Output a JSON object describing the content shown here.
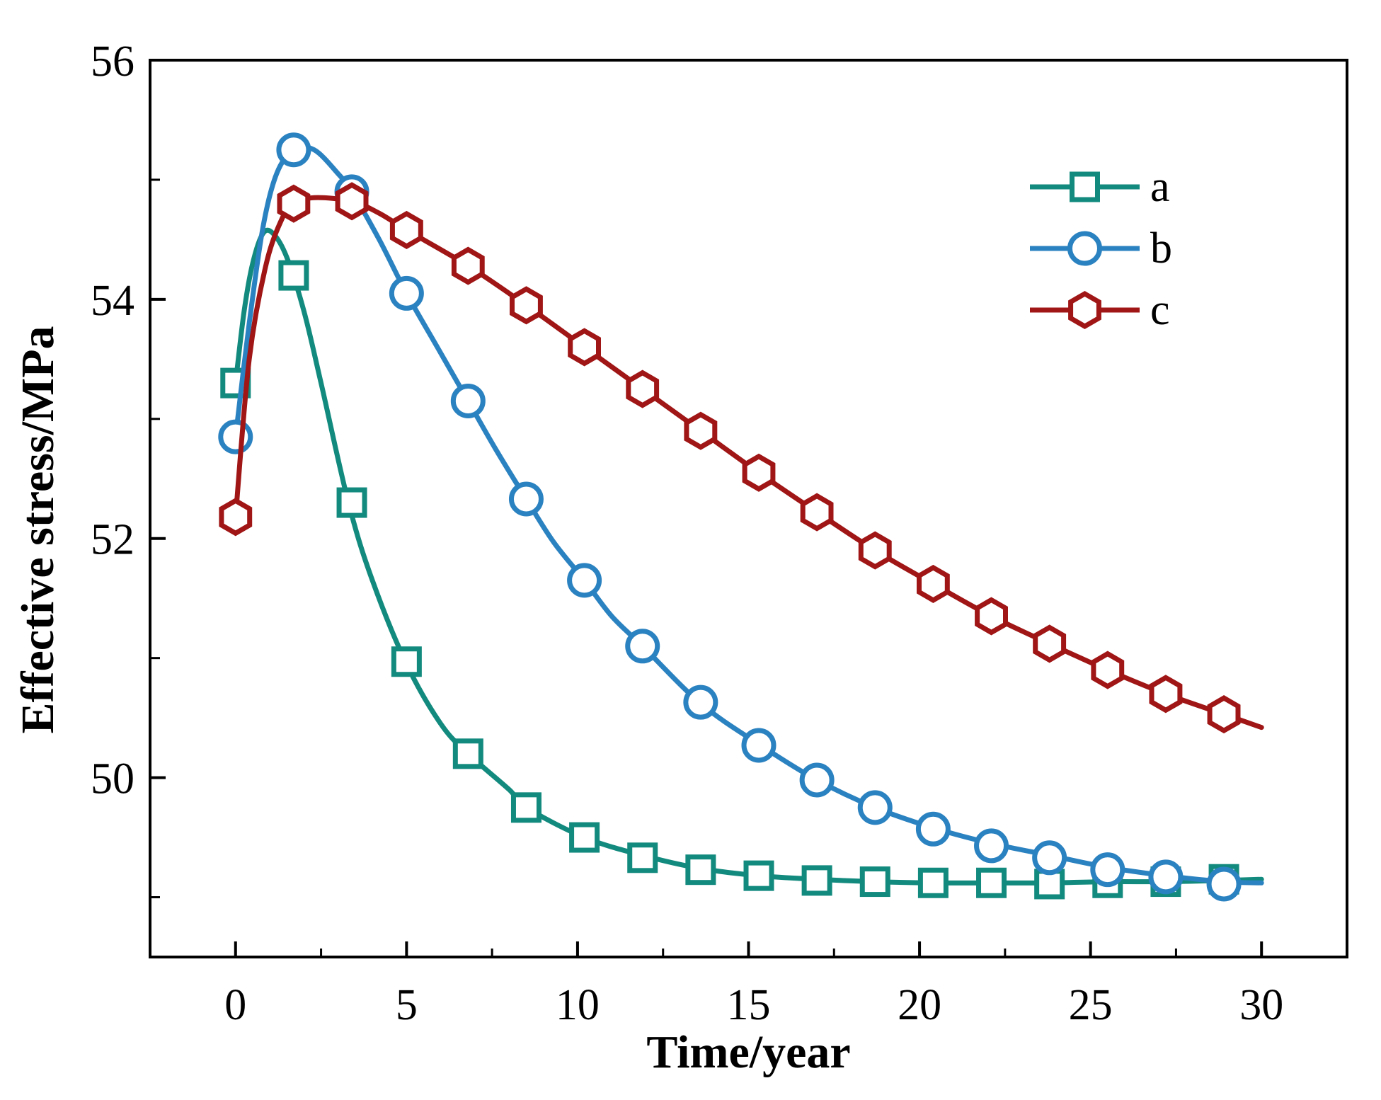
{
  "chart_data": {
    "type": "line",
    "title": "",
    "xlabel": "Time/year",
    "ylabel": "Effective stress/MPa",
    "xlim": [
      -2.5,
      32.5
    ],
    "ylim": [
      48.5,
      56
    ],
    "x_ticks": [
      0,
      5,
      10,
      15,
      20,
      25,
      30
    ],
    "y_ticks_labeled": [
      50,
      52,
      54,
      56
    ],
    "y_ticks_minor": [
      49,
      51,
      53,
      55
    ],
    "legend_position": "top-right",
    "series": [
      {
        "name": "a",
        "color": "#138a7e",
        "marker": "square",
        "curve": [
          [
            0,
            53.3
          ],
          [
            0.25,
            53.9
          ],
          [
            0.5,
            54.3
          ],
          [
            0.8,
            54.55
          ],
          [
            1.1,
            54.55
          ],
          [
            1.5,
            54.35
          ],
          [
            2.0,
            53.9
          ],
          [
            2.5,
            53.3
          ],
          [
            3.3,
            52.3
          ],
          [
            4.0,
            51.65
          ],
          [
            5.0,
            50.95
          ],
          [
            6.0,
            50.45
          ],
          [
            6.8,
            50.2
          ],
          [
            8.0,
            49.9
          ],
          [
            8.5,
            49.75
          ],
          [
            10.2,
            49.5
          ],
          [
            11.9,
            49.35
          ],
          [
            13.6,
            49.24
          ],
          [
            15.3,
            49.18
          ],
          [
            17.0,
            49.15
          ],
          [
            18.7,
            49.13
          ],
          [
            20.4,
            49.12
          ],
          [
            22.1,
            49.12
          ],
          [
            23.8,
            49.12
          ],
          [
            25.5,
            49.13
          ],
          [
            27.2,
            49.13
          ],
          [
            28.9,
            49.14
          ],
          [
            30.0,
            49.15
          ]
        ],
        "markers": [
          [
            0,
            53.3
          ],
          [
            1.7,
            54.2
          ],
          [
            3.4,
            52.3
          ],
          [
            5.0,
            50.97
          ],
          [
            6.8,
            50.2
          ],
          [
            8.5,
            49.75
          ],
          [
            10.2,
            49.5
          ],
          [
            11.9,
            49.33
          ],
          [
            13.6,
            49.23
          ],
          [
            15.3,
            49.18
          ],
          [
            17.0,
            49.14
          ],
          [
            18.7,
            49.13
          ],
          [
            20.4,
            49.12
          ],
          [
            22.1,
            49.12
          ],
          [
            23.8,
            49.11
          ],
          [
            25.5,
            49.12
          ],
          [
            27.2,
            49.13
          ],
          [
            28.9,
            49.15
          ]
        ]
      },
      {
        "name": "b",
        "color": "#2b82c0",
        "marker": "circle",
        "curve": [
          [
            0,
            52.85
          ],
          [
            0.4,
            53.8
          ],
          [
            0.8,
            54.6
          ],
          [
            1.2,
            55.05
          ],
          [
            1.7,
            55.25
          ],
          [
            2.3,
            55.25
          ],
          [
            3.0,
            55.05
          ],
          [
            3.4,
            54.9
          ],
          [
            4.2,
            54.5
          ],
          [
            5.0,
            54.05
          ],
          [
            5.9,
            53.6
          ],
          [
            6.8,
            53.15
          ],
          [
            7.6,
            52.75
          ],
          [
            8.5,
            52.33
          ],
          [
            9.3,
            51.97
          ],
          [
            10.2,
            51.65
          ],
          [
            11.0,
            51.35
          ],
          [
            11.9,
            51.1
          ],
          [
            13.6,
            50.62
          ],
          [
            15.3,
            50.28
          ],
          [
            17.0,
            49.98
          ],
          [
            18.7,
            49.75
          ],
          [
            20.4,
            49.58
          ],
          [
            22.1,
            49.45
          ],
          [
            23.8,
            49.35
          ],
          [
            25.5,
            49.25
          ],
          [
            27.2,
            49.18
          ],
          [
            28.9,
            49.13
          ],
          [
            30.0,
            49.12
          ]
        ],
        "markers": [
          [
            0,
            52.85
          ],
          [
            1.7,
            55.25
          ],
          [
            3.4,
            54.9
          ],
          [
            5.0,
            54.05
          ],
          [
            6.8,
            53.15
          ],
          [
            8.5,
            52.33
          ],
          [
            10.2,
            51.65
          ],
          [
            11.9,
            51.1
          ],
          [
            13.6,
            50.63
          ],
          [
            15.3,
            50.27
          ],
          [
            17.0,
            49.98
          ],
          [
            18.7,
            49.75
          ],
          [
            20.4,
            49.57
          ],
          [
            22.1,
            49.43
          ],
          [
            23.8,
            49.33
          ],
          [
            25.5,
            49.23
          ],
          [
            27.2,
            49.17
          ],
          [
            28.9,
            49.11
          ]
        ]
      },
      {
        "name": "c",
        "color": "#a01515",
        "marker": "hexagon",
        "curve": [
          [
            0,
            52.18
          ],
          [
            0.4,
            53.5
          ],
          [
            0.9,
            54.3
          ],
          [
            1.4,
            54.7
          ],
          [
            1.7,
            54.8
          ],
          [
            2.3,
            54.85
          ],
          [
            3.4,
            54.82
          ],
          [
            4.2,
            54.72
          ],
          [
            5.0,
            54.58
          ],
          [
            6.8,
            54.28
          ],
          [
            8.5,
            53.95
          ],
          [
            10.2,
            53.6
          ],
          [
            11.9,
            53.25
          ],
          [
            13.6,
            52.9
          ],
          [
            15.3,
            52.55
          ],
          [
            17.0,
            52.22
          ],
          [
            18.7,
            51.9
          ],
          [
            20.4,
            51.62
          ],
          [
            22.1,
            51.35
          ],
          [
            23.8,
            51.12
          ],
          [
            25.5,
            50.9
          ],
          [
            27.2,
            50.7
          ],
          [
            28.9,
            50.53
          ],
          [
            30.0,
            50.42
          ]
        ],
        "markers": [
          [
            0,
            52.18
          ],
          [
            1.7,
            54.8
          ],
          [
            3.4,
            54.82
          ],
          [
            5.0,
            54.58
          ],
          [
            6.8,
            54.28
          ],
          [
            8.5,
            53.95
          ],
          [
            10.2,
            53.6
          ],
          [
            11.9,
            53.25
          ],
          [
            13.6,
            52.9
          ],
          [
            15.3,
            52.55
          ],
          [
            17.0,
            52.22
          ],
          [
            18.7,
            51.9
          ],
          [
            20.4,
            51.62
          ],
          [
            22.1,
            51.35
          ],
          [
            23.8,
            51.12
          ],
          [
            25.5,
            50.9
          ],
          [
            27.2,
            50.7
          ],
          [
            28.9,
            50.53
          ]
        ]
      }
    ]
  }
}
